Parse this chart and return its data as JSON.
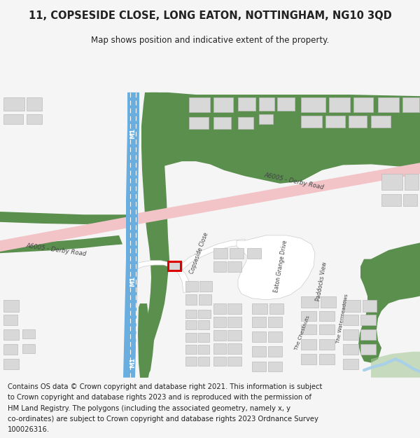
{
  "title": "11, COPSESIDE CLOSE, LONG EATON, NOTTINGHAM, NG10 3QD",
  "subtitle": "Map shows position and indicative extent of the property.",
  "footer_lines": [
    "Contains OS data © Crown copyright and database right 2021. This information is subject",
    "to Crown copyright and database rights 2023 and is reproduced with the permission of",
    "HM Land Registry. The polygons (including the associated geometry, namely x, y",
    "co-ordinates) are subject to Crown copyright and database rights 2023 Ordnance Survey",
    "100026316."
  ],
  "bg_color": "#f5f5f5",
  "map_bg": "#f8f8f8",
  "green_color": "#5a8f4e",
  "blue_color": "#6aaee0",
  "pink_color": "#f2c4c8",
  "building_color": "#d8d8d8",
  "building_edge": "#bbbbbb",
  "highlight_color": "#dd0000",
  "text_color": "#222222",
  "road_text_color": "#444444",
  "title_fontsize": 10.5,
  "subtitle_fontsize": 8.5,
  "footer_fontsize": 7.2,
  "water_color": "#a8d0e8"
}
